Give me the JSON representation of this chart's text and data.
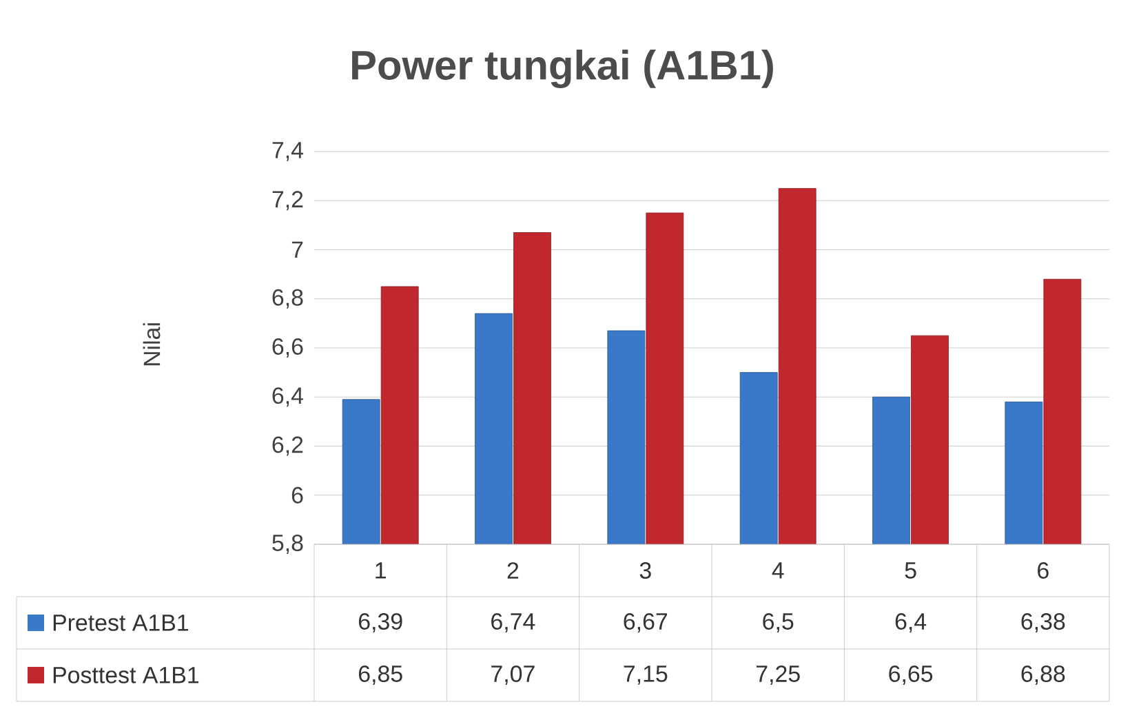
{
  "chart_data": {
    "type": "bar",
    "title": "Power tungkai (A1B1)",
    "ylabel": "Nilai",
    "categories": [
      "1",
      "2",
      "3",
      "4",
      "5",
      "6"
    ],
    "series": [
      {
        "name": "Pretest A1B1",
        "color": "#3a78c9",
        "values": [
          6.39,
          6.74,
          6.67,
          6.5,
          6.4,
          6.38
        ],
        "value_labels": [
          "6,39",
          "6,74",
          "6,67",
          "6,5",
          "6,4",
          "6,38"
        ]
      },
      {
        "name": "Posttest A1B1",
        "color": "#c0282d",
        "values": [
          6.85,
          7.07,
          7.15,
          7.25,
          6.65,
          6.88
        ],
        "value_labels": [
          "6,85",
          "7,07",
          "7,15",
          "7,25",
          "6,65",
          "6,88"
        ]
      }
    ],
    "ylim": [
      5.8,
      7.4
    ],
    "yticks": [
      {
        "value": 5.8,
        "label": "5,8"
      },
      {
        "value": 6,
        "label": "6"
      },
      {
        "value": 6.2,
        "label": "6,2"
      },
      {
        "value": 6.4,
        "label": "6,4"
      },
      {
        "value": 6.6,
        "label": "6,6"
      },
      {
        "value": 6.8,
        "label": "6,8"
      },
      {
        "value": 7,
        "label": "7"
      },
      {
        "value": 7.2,
        "label": "7,2"
      },
      {
        "value": 7.4,
        "label": "7,4"
      }
    ],
    "grid": "y",
    "legend": "bottom"
  }
}
